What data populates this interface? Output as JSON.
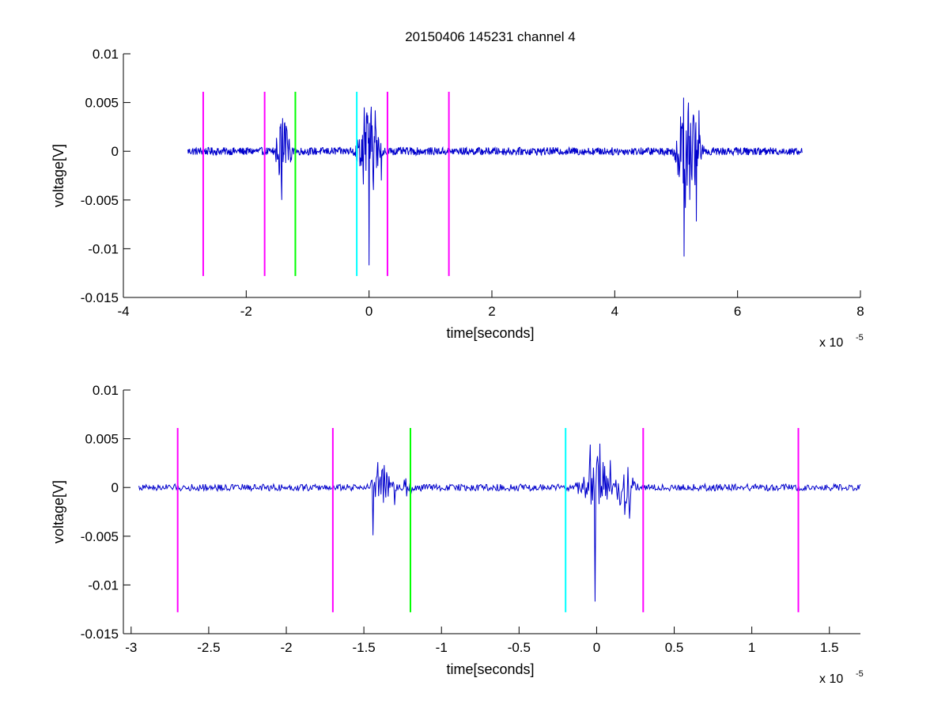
{
  "figure": {
    "title": "20150406 145231 channel 4"
  },
  "chart_data": [
    {
      "type": "line",
      "title": "20150406 145231 channel 4",
      "xlabel": "time[seconds]",
      "ylabel": "voltage[V]",
      "x_exponent_label": "x 10",
      "x_exponent_power": "-5",
      "xlim": [
        -4,
        8
      ],
      "ylim": [
        -0.015,
        0.01
      ],
      "x_ticks": [
        -4,
        -2,
        0,
        2,
        4,
        6,
        8
      ],
      "x_tick_labels": [
        "-4",
        "-2",
        "0",
        "2",
        "4",
        "6",
        "8"
      ],
      "y_ticks": [
        -0.015,
        -0.01,
        -0.005,
        0,
        0.005,
        0.01
      ],
      "y_tick_labels": [
        "-0.015",
        "-0.01",
        "-0.005",
        "0",
        "0.005",
        "0.01"
      ],
      "grid": false,
      "signal": {
        "color": "#0000cc",
        "x_range": [
          -2.95,
          7.05
        ],
        "baseline_noise": 0.0004,
        "bursts": [
          {
            "t": -1.4,
            "amp": 0.0038,
            "width": 0.1
          },
          {
            "t": -0.0,
            "amp": 0.005,
            "width": 0.15
          },
          {
            "t": 5.15,
            "amp": 0.006,
            "width": 0.12
          },
          {
            "t": 5.3,
            "amp": 0.004,
            "width": 0.1
          }
        ],
        "spikes": [
          {
            "t": -1.42,
            "v": -0.005
          },
          {
            "t": -1.35,
            "v": 0.0026
          },
          {
            "t": -0.08,
            "v": 0.0045
          },
          {
            "t": -0.0,
            "v": -0.0117
          },
          {
            "t": 0.1,
            "v": 0.0042
          },
          {
            "t": 0.2,
            "v": -0.003
          },
          {
            "t": 5.12,
            "v": 0.0055
          },
          {
            "t": 5.13,
            "v": -0.0108
          },
          {
            "t": 5.2,
            "v": 0.005
          },
          {
            "t": 5.33,
            "v": -0.0072
          },
          {
            "t": 5.37,
            "v": 0.0042
          }
        ]
      },
      "markers": [
        {
          "x": -2.7,
          "color": "#ff00ff",
          "ymin": -0.0128,
          "ymax": 0.0061
        },
        {
          "x": -1.7,
          "color": "#ff00ff",
          "ymin": -0.0128,
          "ymax": 0.0061
        },
        {
          "x": -1.2,
          "color": "#00ff00",
          "ymin": -0.0128,
          "ymax": 0.0061
        },
        {
          "x": -0.2,
          "color": "#00ffff",
          "ymin": -0.0128,
          "ymax": 0.0061
        },
        {
          "x": 0.3,
          "color": "#ff00ff",
          "ymin": -0.0128,
          "ymax": 0.0061
        },
        {
          "x": 1.3,
          "color": "#ff00ff",
          "ymin": -0.0128,
          "ymax": 0.0061
        }
      ]
    },
    {
      "type": "line",
      "title": "",
      "xlabel": "time[seconds]",
      "ylabel": "voltage[V]",
      "x_exponent_label": "x 10",
      "x_exponent_power": "-5",
      "xlim": [
        -3.05,
        1.7
      ],
      "ylim": [
        -0.015,
        0.01
      ],
      "x_ticks": [
        -3,
        -2.5,
        -2,
        -1.5,
        -1,
        -0.5,
        0,
        0.5,
        1,
        1.5
      ],
      "x_tick_labels": [
        "-3",
        "-2.5",
        "-2",
        "-1.5",
        "-1",
        "-0.5",
        "0",
        "0.5",
        "1",
        "1.5"
      ],
      "y_ticks": [
        -0.015,
        -0.01,
        -0.005,
        0,
        0.005,
        0.01
      ],
      "y_tick_labels": [
        "-0.015",
        "-0.01",
        "-0.005",
        "0",
        "0.005",
        "0.01"
      ],
      "grid": false,
      "signal": {
        "color": "#0000cc",
        "x_range": [
          -2.95,
          1.7
        ],
        "baseline_noise": 0.00035,
        "bursts": [
          {
            "t": -1.38,
            "amp": 0.0022,
            "width": 0.07
          },
          {
            "t": -1.22,
            "amp": 0.0009,
            "width": 0.05
          },
          {
            "t": 0.0,
            "amp": 0.003,
            "width": 0.09
          },
          {
            "t": 0.18,
            "amp": 0.0022,
            "width": 0.06
          }
        ],
        "spikes": [
          {
            "t": -1.44,
            "v": -0.0049
          },
          {
            "t": -1.41,
            "v": 0.0026
          },
          {
            "t": -1.37,
            "v": 0.0023
          },
          {
            "t": -1.3,
            "v": -0.0018
          },
          {
            "t": -0.04,
            "v": 0.0044
          },
          {
            "t": -0.01,
            "v": -0.0117
          },
          {
            "t": 0.02,
            "v": 0.0045
          },
          {
            "t": 0.09,
            "v": 0.0028
          },
          {
            "t": 0.18,
            "v": -0.0028
          },
          {
            "t": 0.21,
            "v": -0.0032
          },
          {
            "t": 0.2,
            "v": 0.0021
          }
        ]
      },
      "markers": [
        {
          "x": -2.7,
          "color": "#ff00ff",
          "ymin": -0.0128,
          "ymax": 0.0061
        },
        {
          "x": -1.7,
          "color": "#ff00ff",
          "ymin": -0.0128,
          "ymax": 0.0061
        },
        {
          "x": -1.2,
          "color": "#00ff00",
          "ymin": -0.0128,
          "ymax": 0.0061
        },
        {
          "x": -0.2,
          "color": "#00ffff",
          "ymin": -0.0128,
          "ymax": 0.0061
        },
        {
          "x": 0.3,
          "color": "#ff00ff",
          "ymin": -0.0128,
          "ymax": 0.0061
        },
        {
          "x": 1.3,
          "color": "#ff00ff",
          "ymin": -0.0128,
          "ymax": 0.0061
        }
      ]
    }
  ]
}
